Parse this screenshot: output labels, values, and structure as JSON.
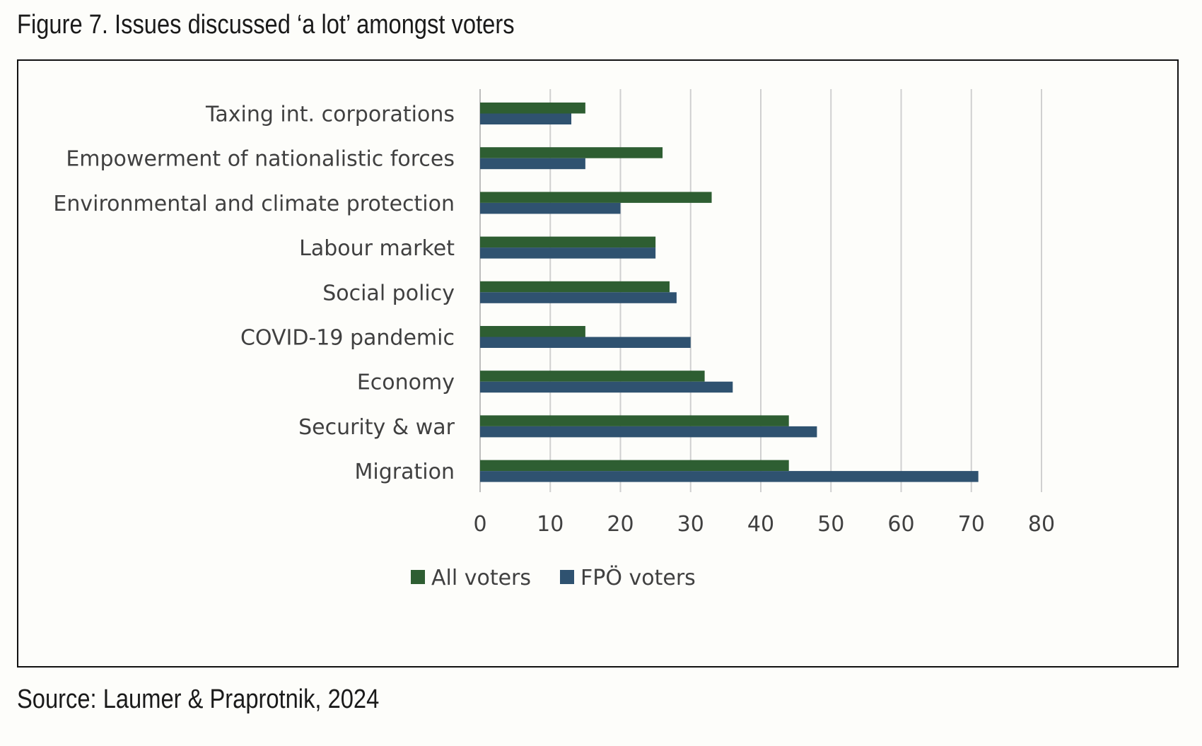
{
  "figure": {
    "title": "Figure 7. Issues discussed ‘a lot’ amongst voters",
    "source": "Source: Laumer & Praprotnik, 2024"
  },
  "chart_data": {
    "type": "bar",
    "orientation": "horizontal",
    "categories": [
      "Taxing int. corporations",
      "Empowerment of nationalistic forces",
      "Environmental and climate protection",
      "Labour market",
      "Social policy",
      "COVID-19 pandemic",
      "Economy",
      "Security & war",
      "Migration"
    ],
    "series": [
      {
        "name": "All voters",
        "color": "#2e5e32",
        "values": [
          15,
          26,
          33,
          25,
          27,
          15,
          32,
          44,
          44
        ]
      },
      {
        "name": "FPÖ voters",
        "color": "#2f5270",
        "values": [
          13,
          15,
          20,
          25,
          28,
          30,
          36,
          48,
          71
        ]
      }
    ],
    "xlim": [
      0,
      80
    ],
    "xticks": [
      "0",
      "10",
      "20",
      "30",
      "40",
      "50",
      "60",
      "70",
      "80"
    ],
    "grid": true,
    "legend_position": "bottom"
  }
}
